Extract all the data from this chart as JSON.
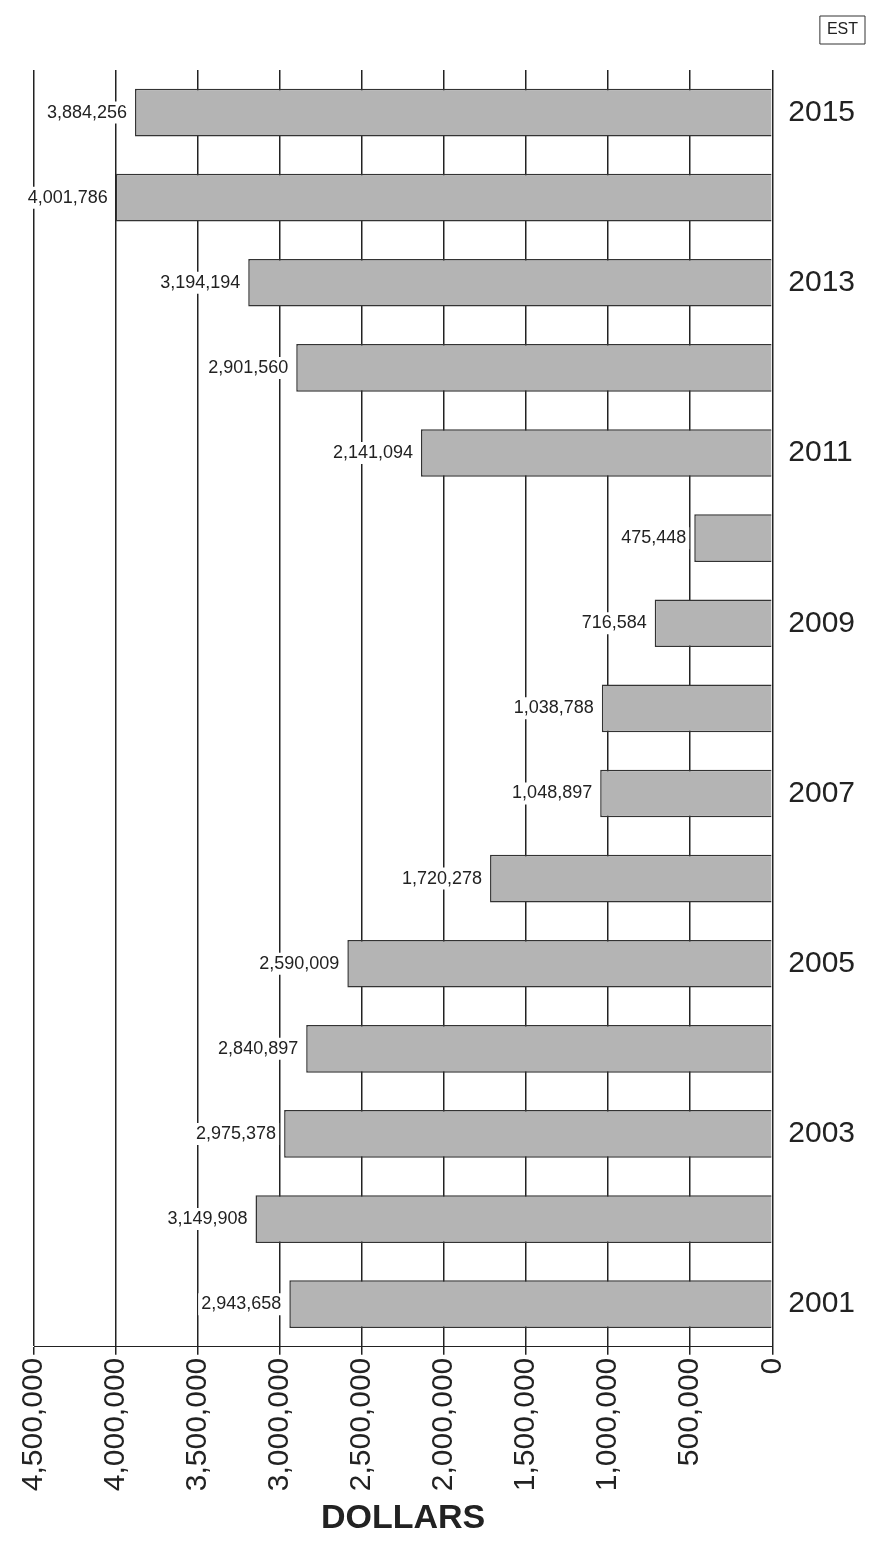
{
  "chart_data": {
    "type": "bar",
    "orientation": "horizontal",
    "xlabel": "DOLLARS",
    "categories": [
      "2015",
      null,
      "2013",
      null,
      "2011",
      null,
      "2009",
      null,
      "2007",
      null,
      "2005",
      null,
      "2003",
      null,
      "2001"
    ],
    "values": [
      3884256,
      4001786,
      3194194,
      2901560,
      2141094,
      475448,
      716584,
      1038788,
      1048897,
      1720278,
      2590009,
      2840897,
      2975378,
      3149908,
      2943658
    ],
    "value_labels": [
      "3,884,256",
      "4,001,786",
      "3,194,194",
      "2,901,560",
      "2,141,094",
      "475,448",
      "716,584",
      "1,038,788",
      "1,048,897",
      "1,720,278",
      "2,590,009",
      "2,840,897",
      "2,975,378",
      "3,149,908",
      "2,943,658"
    ],
    "color": "#b4b4b4",
    "xlim": [
      4500000,
      0
    ],
    "xticks": [
      {
        "value": 4500000,
        "label": "4,500,000"
      },
      {
        "value": 4000000,
        "label": "4,000,000"
      },
      {
        "value": 3500000,
        "label": "3,500,000"
      },
      {
        "value": 3000000,
        "label": "3,000,000"
      },
      {
        "value": 2500000,
        "label": "2,500,000"
      },
      {
        "value": 2000000,
        "label": "2,000,000"
      },
      {
        "value": 1500000,
        "label": "1,500,000"
      },
      {
        "value": 1000000,
        "label": "1,000,000"
      },
      {
        "value": 500000,
        "label": "500,000"
      },
      0
    ],
    "grid": "x",
    "annotations": [
      "EST"
    ]
  }
}
